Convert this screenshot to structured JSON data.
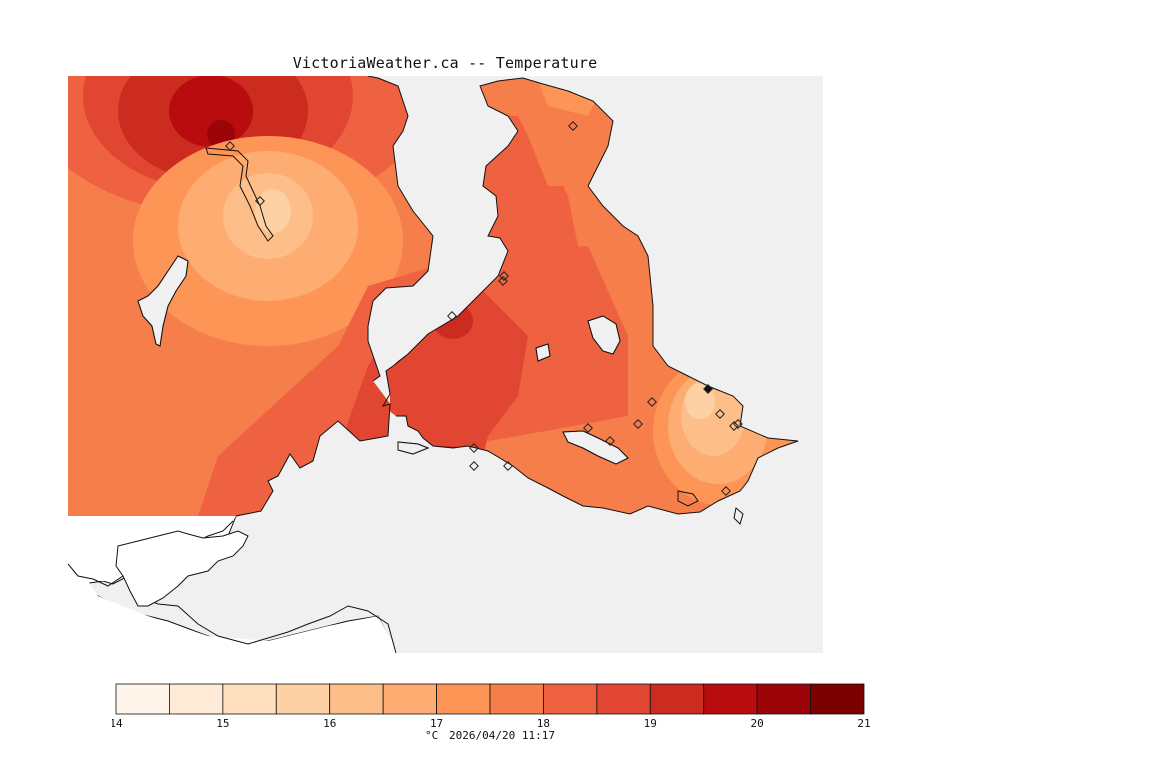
{
  "title": "VictoriaWeather.ca -- Temperature",
  "footer": {
    "unit": "°C",
    "timestamp": "2026/04/20 11:17"
  },
  "legend": {
    "min": 14,
    "max": 21,
    "step": 0.5,
    "tick_labels": [
      "14",
      "15",
      "16",
      "17",
      "18",
      "19",
      "20",
      "21"
    ],
    "colors": [
      "#fff5eb",
      "#feead6",
      "#fee0c0",
      "#fdd1a3",
      "#fdbe89",
      "#fdac72",
      "#fd9557",
      "#f67e4b",
      "#ee6242",
      "#e04631",
      "#cc2b1f",
      "#b90c0f",
      "#9b0408",
      "#7c0000"
    ]
  },
  "stations": [
    {
      "id": "s1",
      "temp": 20.2
    },
    {
      "id": "s2",
      "temp": 16.3
    },
    {
      "id": "s3",
      "temp": 18.3
    },
    {
      "id": "s4",
      "temp": 19.2
    },
    {
      "id": "s5",
      "temp": 19.6
    },
    {
      "id": "s6",
      "temp": 19.5
    },
    {
      "id": "s7",
      "temp": 19.0
    },
    {
      "id": "s8",
      "temp": 18.2
    },
    {
      "id": "s9",
      "temp": 18.1
    },
    {
      "id": "s10",
      "temp": 18.3
    },
    {
      "id": "s11",
      "temp": 18.4
    },
    {
      "id": "s12",
      "temp": 17.4
    },
    {
      "id": "s13",
      "temp": 16.1
    },
    {
      "id": "s14",
      "temp": 15.9
    },
    {
      "id": "s15",
      "temp": 16.4
    },
    {
      "id": "s16",
      "temp": 17.2
    },
    {
      "id": "s17",
      "temp": 18.0
    },
    {
      "id": "s18",
      "temp": 18.3
    }
  ]
}
